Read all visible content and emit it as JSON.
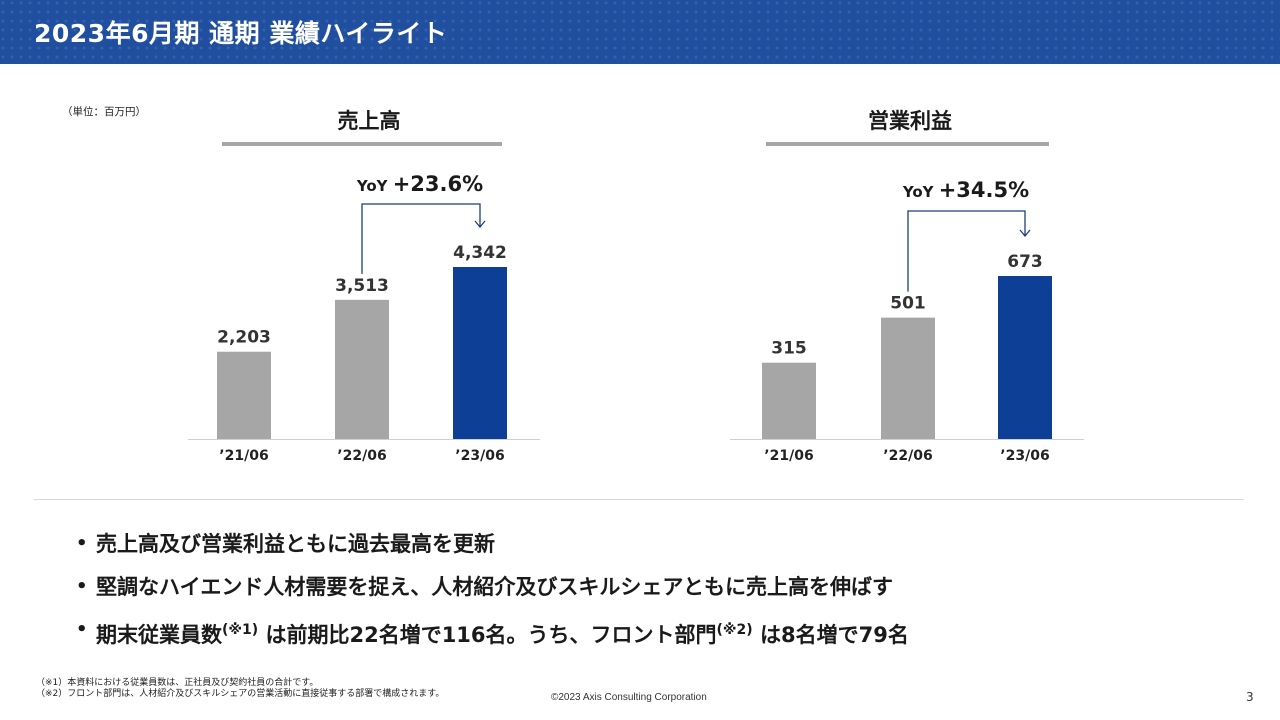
{
  "header": {
    "title": "2023年6月期 通期 業績ハイライト"
  },
  "unit_label": "（単位：百万円）",
  "chart_data": [
    {
      "type": "bar",
      "title": "売上高",
      "categories": [
        "’21/06",
        "’22/06",
        "’23/06"
      ],
      "values": [
        2203,
        3513,
        4342
      ],
      "value_labels": [
        "2,203",
        "3,513",
        "4,342"
      ],
      "ylim": [
        0,
        4342
      ],
      "highlight_index": 2,
      "colors": {
        "normal": "#a6a6a6",
        "highlight": "#0d3f96"
      },
      "yoy_label": "YoY",
      "yoy_value": "+23.6%",
      "grid": false,
      "legend": "none"
    },
    {
      "type": "bar",
      "title": "営業利益",
      "categories": [
        "’21/06",
        "’22/06",
        "’23/06"
      ],
      "values": [
        315,
        501,
        673
      ],
      "value_labels": [
        "315",
        "501",
        "673"
      ],
      "ylim": [
        0,
        673
      ],
      "highlight_index": 2,
      "colors": {
        "normal": "#a6a6a6",
        "highlight": "#0d3f96"
      },
      "yoy_label": "YoY",
      "yoy_value": "+34.5%",
      "grid": false,
      "legend": "none"
    }
  ],
  "bullets": [
    {
      "text": "売上高及び営業利益ともに過去最高を更新"
    },
    {
      "text": "堅調なハイエンド人材需要を捉え、人材紹介及びスキルシェアともに売上高を伸ばす"
    },
    {
      "pre": "期末従業員数",
      "sup1": "(※1)",
      "mid": " は前期比22名増で116名。うち、フロント部門",
      "sup2": "(※2)",
      "post": " は8名増で79名"
    }
  ],
  "footnotes": [
    "（※1）本資料における従業員数は、正社員及び契約社員の合計です。",
    "（※2）フロント部門は、人材紹介及びスキルシェアの営業活動に直接従事する部署で構成されます。"
  ],
  "copyright": "©2023 Axis Consulting Corporation",
  "page_number": "3"
}
